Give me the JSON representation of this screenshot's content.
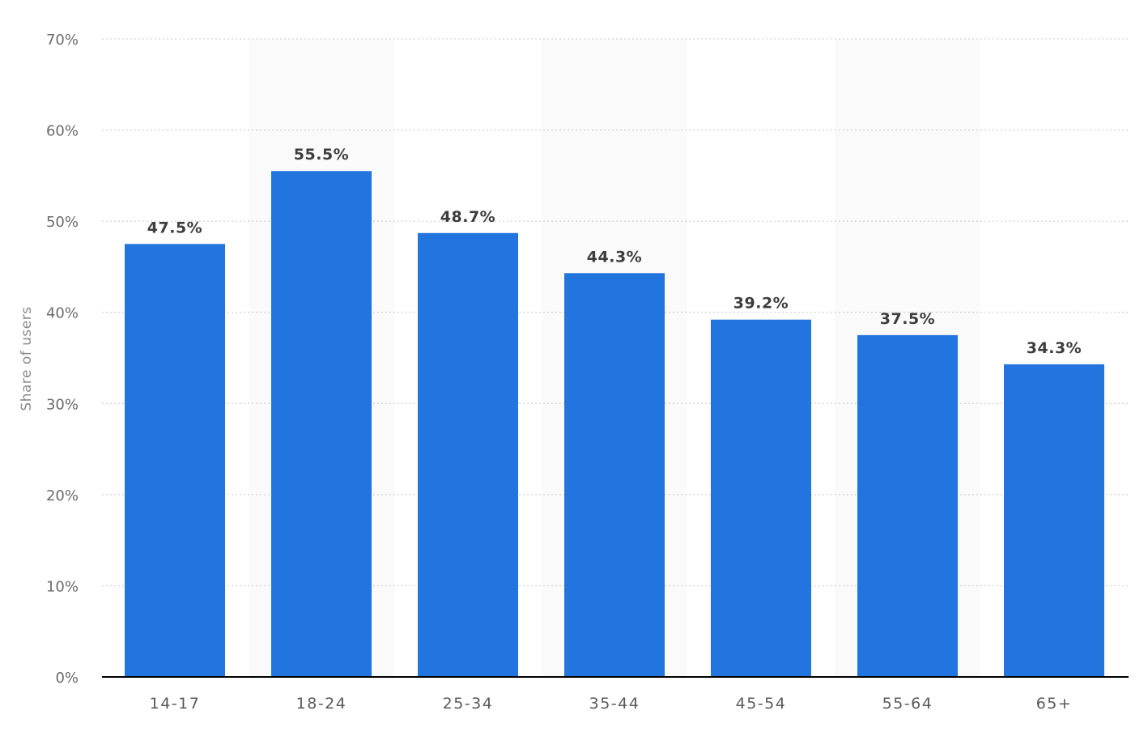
{
  "chart_data": {
    "type": "bar",
    "title": "",
    "xlabel": "",
    "ylabel": "Share of users",
    "categories": [
      "14-17",
      "18-24",
      "25-34",
      "35-44",
      "45-54",
      "55-64",
      "65+"
    ],
    "values": [
      47.5,
      55.5,
      48.7,
      44.3,
      39.2,
      37.5,
      34.3
    ],
    "data_labels": [
      "47.5%",
      "55.5%",
      "48.7%",
      "44.3%",
      "39.2%",
      "37.5%",
      "34.3%"
    ],
    "ylim": [
      0,
      70
    ],
    "yticks": [
      0,
      10,
      20,
      30,
      40,
      50,
      60,
      70
    ],
    "ytick_labels": [
      "0%",
      "10%",
      "20%",
      "30%",
      "40%",
      "50%",
      "60%",
      "70%"
    ],
    "grid": true,
    "legend": "none",
    "bar_color": "#2274de"
  }
}
